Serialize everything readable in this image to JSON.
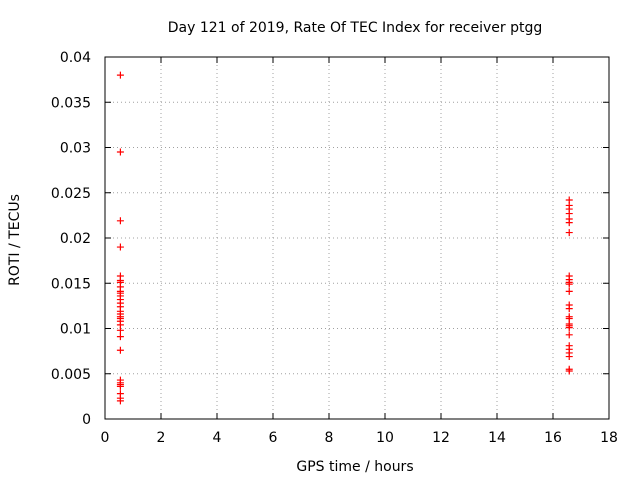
{
  "colors": {
    "series": "#ff0000",
    "axis": "#000000",
    "grid": "#a0a0a0",
    "background": "#ffffff"
  },
  "chart_data": {
    "type": "scatter",
    "title": "Day 121 of 2019, Rate Of TEC Index for receiver ptgg",
    "xlabel": "GPS time / hours",
    "ylabel": "ROTI / TECUs",
    "xlim": [
      0,
      18
    ],
    "ylim": [
      0,
      0.04
    ],
    "grid": true,
    "marker": "+",
    "x_ticks": [
      0,
      2,
      4,
      6,
      8,
      10,
      12,
      14,
      16,
      18
    ],
    "x_tick_labels": [
      "0",
      "2",
      "4",
      "6",
      "8",
      "10",
      "12",
      "14",
      "16",
      "18"
    ],
    "y_ticks": [
      0,
      0.005,
      0.01,
      0.015,
      0.02,
      0.025,
      0.03,
      0.035,
      0.04
    ],
    "y_tick_labels": [
      "0",
      "0.005",
      "0.01",
      "0.015",
      "0.02",
      "0.025",
      "0.03",
      "0.035",
      "0.04"
    ],
    "series": [
      {
        "name": "ROTI",
        "x": [
          0.55,
          0.55,
          0.55,
          0.55,
          0.55,
          0.55,
          0.55,
          0.55,
          0.55,
          0.55,
          0.55,
          0.55,
          0.55,
          0.55,
          0.55,
          0.55,
          0.55,
          0.55,
          0.55,
          0.55,
          0.55,
          0.55,
          0.55,
          0.55,
          0.55,
          0.55,
          0.55,
          0.55,
          0.55,
          0.55,
          16.58,
          16.58,
          16.58,
          16.58,
          16.58,
          16.58,
          16.58,
          16.58,
          16.58,
          16.58,
          16.58,
          16.58,
          16.58,
          16.58,
          16.58,
          16.58,
          16.58,
          16.58,
          16.58,
          16.58,
          16.58,
          16.58,
          16.58,
          16.58,
          16.58,
          16.58
        ],
        "y": [
          0.038,
          0.0295,
          0.0219,
          0.019,
          0.0158,
          0.0153,
          0.0151,
          0.0146,
          0.0141,
          0.0139,
          0.0136,
          0.0132,
          0.0128,
          0.0124,
          0.0119,
          0.0116,
          0.0113,
          0.0111,
          0.0108,
          0.0104,
          0.0098,
          0.0091,
          0.0076,
          0.0043,
          0.004,
          0.0038,
          0.0036,
          0.0028,
          0.0023,
          0.002,
          0.0242,
          0.0236,
          0.0232,
          0.0227,
          0.0221,
          0.0217,
          0.0206,
          0.0158,
          0.0154,
          0.0151,
          0.0149,
          0.0141,
          0.0126,
          0.0122,
          0.0113,
          0.0111,
          0.0105,
          0.0103,
          0.0101,
          0.0093,
          0.0081,
          0.0077,
          0.0073,
          0.0069,
          0.0055,
          0.0053
        ]
      }
    ]
  }
}
